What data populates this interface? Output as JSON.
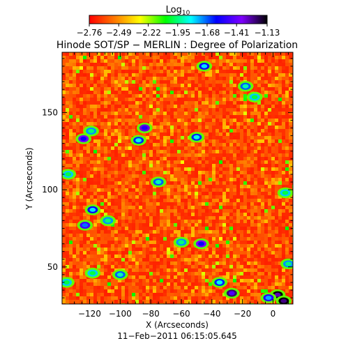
{
  "chart_data": {
    "type": "heatmap",
    "title": "Hinode SOT/SP − MERLIN : Degree of Polarization",
    "xlabel": "X (Arcseconds)",
    "ylabel": "Y (Arcseconds)",
    "timestamp": "11−Feb−2011 06:15:05.645",
    "xlim": [
      -138,
      13
    ],
    "ylim": [
      26,
      189
    ],
    "x_ticks": [
      {
        "value": -120,
        "label": "−120"
      },
      {
        "value": -100,
        "label": "−100"
      },
      {
        "value": -80,
        "label": "−80"
      },
      {
        "value": -60,
        "label": "−60"
      },
      {
        "value": -40,
        "label": "−40"
      },
      {
        "value": -20,
        "label": "−20"
      },
      {
        "value": 0,
        "label": "0"
      }
    ],
    "y_ticks": [
      {
        "value": 50,
        "label": "50"
      },
      {
        "value": 100,
        "label": "100"
      },
      {
        "value": 150,
        "label": "150"
      }
    ],
    "colorbar": {
      "label_base": "Log",
      "label_sub": "10",
      "range": [
        -2.76,
        -1.13
      ],
      "ticks": [
        {
          "value": -2.76,
          "label": "−2.76"
        },
        {
          "value": -2.49,
          "label": "−2.49"
        },
        {
          "value": -2.22,
          "label": "−2.22"
        },
        {
          "value": -1.95,
          "label": "−1.95"
        },
        {
          "value": -1.68,
          "label": "−1.68"
        },
        {
          "value": -1.41,
          "label": "−1.41"
        },
        {
          "value": -1.13,
          "label": "−1.13"
        }
      ],
      "colors": [
        "#ff0000",
        "#ff7a00",
        "#ffff00",
        "#00ff00",
        "#00ffff",
        "#0000ff",
        "#7f00ff",
        "#000000"
      ]
    },
    "background_level": -2.68,
    "features": [
      {
        "x": -124,
        "y": 133,
        "level": -1.6
      },
      {
        "x": -119,
        "y": 138,
        "level": -1.95
      },
      {
        "x": -84,
        "y": 140,
        "level": -1.55
      },
      {
        "x": -88,
        "y": 132,
        "level": -1.85
      },
      {
        "x": -50,
        "y": 134,
        "level": -1.85
      },
      {
        "x": -45,
        "y": 180,
        "level": -1.8
      },
      {
        "x": -18,
        "y": 167,
        "level": -1.9
      },
      {
        "x": -12,
        "y": 160,
        "level": -2.0
      },
      {
        "x": -118,
        "y": 87,
        "level": -1.8
      },
      {
        "x": -123,
        "y": 77,
        "level": -1.7
      },
      {
        "x": -108,
        "y": 80,
        "level": -1.95
      },
      {
        "x": -75,
        "y": 105,
        "level": -1.9
      },
      {
        "x": -47,
        "y": 65,
        "level": -1.6
      },
      {
        "x": -60,
        "y": 66,
        "level": -1.95
      },
      {
        "x": -100,
        "y": 45,
        "level": -1.9
      },
      {
        "x": -118,
        "y": 46,
        "level": -2.0
      },
      {
        "x": -27,
        "y": 33,
        "level": -1.45
      },
      {
        "x": -35,
        "y": 40,
        "level": -1.85
      },
      {
        "x": 3,
        "y": 32,
        "level": -1.3
      },
      {
        "x": 7,
        "y": 28,
        "level": -1.25
      },
      {
        "x": -3,
        "y": 30,
        "level": -1.75
      },
      {
        "x": 10,
        "y": 52,
        "level": -1.95
      },
      {
        "x": 8,
        "y": 98,
        "level": -2.0
      },
      {
        "x": -134,
        "y": 110,
        "level": -2.0
      },
      {
        "x": -135,
        "y": 40,
        "level": -2.0
      }
    ]
  }
}
